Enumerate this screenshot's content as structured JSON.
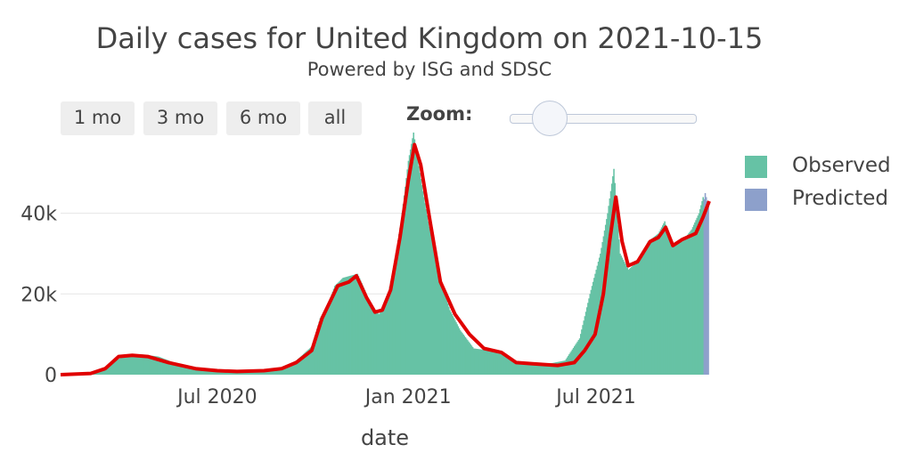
{
  "chart_data": {
    "type": "bar",
    "title": "Daily cases for United Kingdom on 2021-10-15",
    "subtitle": "Powered by ISG and SDSC",
    "xlabel": "date",
    "ylabel": "",
    "x_range": [
      "2020-02-01",
      "2021-10-18"
    ],
    "ylim": [
      0,
      58000
    ],
    "grid": "horizontal",
    "legend_position": "right",
    "y_ticks": [
      0,
      20000,
      40000
    ],
    "y_tick_labels": [
      "0",
      "20k",
      "40k"
    ],
    "x_ticks": [
      "2020-07-01",
      "2021-01-01",
      "2021-07-01"
    ],
    "x_tick_labels": [
      "Jul 2020",
      "Jan 2021",
      "Jul 2021"
    ],
    "series": [
      {
        "name": "Observed",
        "kind": "bar",
        "color": "#66c2a5",
        "points": [
          [
            "2020-02-01",
            0
          ],
          [
            "2020-03-01",
            200
          ],
          [
            "2020-03-15",
            1200
          ],
          [
            "2020-03-25",
            3500
          ],
          [
            "2020-04-05",
            5000
          ],
          [
            "2020-04-20",
            5000
          ],
          [
            "2020-05-05",
            4500
          ],
          [
            "2020-05-20",
            3000
          ],
          [
            "2020-06-10",
            1800
          ],
          [
            "2020-07-01",
            900
          ],
          [
            "2020-07-20",
            700
          ],
          [
            "2020-08-10",
            900
          ],
          [
            "2020-09-01",
            1500
          ],
          [
            "2020-09-15",
            3500
          ],
          [
            "2020-09-30",
            7000
          ],
          [
            "2020-10-08",
            14000
          ],
          [
            "2020-10-15",
            17000
          ],
          [
            "2020-10-22",
            22000
          ],
          [
            "2020-10-30",
            24000
          ],
          [
            "2020-11-06",
            24500
          ],
          [
            "2020-11-13",
            25000
          ],
          [
            "2020-11-20",
            21000
          ],
          [
            "2020-11-27",
            16000
          ],
          [
            "2020-12-04",
            15000
          ],
          [
            "2020-12-11",
            18000
          ],
          [
            "2020-12-18",
            27000
          ],
          [
            "2020-12-25",
            38000
          ],
          [
            "2021-01-01",
            53000
          ],
          [
            "2021-01-06",
            60000
          ],
          [
            "2021-01-12",
            50000
          ],
          [
            "2021-01-20",
            38000
          ],
          [
            "2021-01-30",
            25000
          ],
          [
            "2021-02-10",
            16000
          ],
          [
            "2021-02-20",
            11000
          ],
          [
            "2021-03-05",
            6500
          ],
          [
            "2021-03-20",
            6000
          ],
          [
            "2021-04-01",
            5000
          ],
          [
            "2021-04-15",
            3000
          ],
          [
            "2021-05-10",
            2400
          ],
          [
            "2021-06-01",
            3500
          ],
          [
            "2021-06-15",
            9000
          ],
          [
            "2021-06-25",
            20000
          ],
          [
            "2021-07-05",
            30000
          ],
          [
            "2021-07-12",
            40000
          ],
          [
            "2021-07-18",
            51000
          ],
          [
            "2021-07-24",
            30000
          ],
          [
            "2021-08-01",
            26000
          ],
          [
            "2021-08-10",
            28000
          ],
          [
            "2021-08-20",
            33000
          ],
          [
            "2021-08-30",
            35000
          ],
          [
            "2021-09-05",
            38000
          ],
          [
            "2021-09-12",
            32000
          ],
          [
            "2021-09-22",
            33000
          ],
          [
            "2021-10-01",
            36000
          ],
          [
            "2021-10-08",
            40000
          ],
          [
            "2021-10-12",
            44000
          ]
        ]
      },
      {
        "name": "Predicted",
        "kind": "bar",
        "color": "#8da0cb",
        "points": [
          [
            "2021-10-13",
            43500
          ],
          [
            "2021-10-14",
            45000
          ],
          [
            "2021-10-15",
            44000
          ],
          [
            "2021-10-16",
            43000
          ],
          [
            "2021-10-17",
            42000
          ]
        ]
      },
      {
        "name": "",
        "kind": "line",
        "color": "#e00000",
        "points": [
          [
            "2020-02-01",
            0
          ],
          [
            "2020-03-01",
            300
          ],
          [
            "2020-03-15",
            1500
          ],
          [
            "2020-03-28",
            4500
          ],
          [
            "2020-04-10",
            4800
          ],
          [
            "2020-04-25",
            4500
          ],
          [
            "2020-05-15",
            3000
          ],
          [
            "2020-06-10",
            1500
          ],
          [
            "2020-07-01",
            1000
          ],
          [
            "2020-07-20",
            800
          ],
          [
            "2020-08-15",
            1000
          ],
          [
            "2020-09-01",
            1500
          ],
          [
            "2020-09-15",
            3000
          ],
          [
            "2020-09-30",
            6000
          ],
          [
            "2020-10-10",
            14000
          ],
          [
            "2020-10-25",
            22000
          ],
          [
            "2020-11-05",
            23000
          ],
          [
            "2020-11-12",
            24500
          ],
          [
            "2020-11-22",
            19000
          ],
          [
            "2020-11-30",
            15500
          ],
          [
            "2020-12-07",
            16000
          ],
          [
            "2020-12-15",
            21000
          ],
          [
            "2020-12-24",
            34000
          ],
          [
            "2021-01-01",
            48000
          ],
          [
            "2021-01-07",
            57000
          ],
          [
            "2021-01-13",
            52000
          ],
          [
            "2021-01-22",
            38000
          ],
          [
            "2021-02-01",
            23000
          ],
          [
            "2021-02-15",
            15000
          ],
          [
            "2021-03-01",
            10000
          ],
          [
            "2021-03-15",
            6500
          ],
          [
            "2021-04-01",
            5500
          ],
          [
            "2021-04-15",
            3000
          ],
          [
            "2021-05-01",
            2700
          ],
          [
            "2021-05-25",
            2300
          ],
          [
            "2021-06-10",
            3000
          ],
          [
            "2021-06-20",
            6000
          ],
          [
            "2021-06-30",
            10000
          ],
          [
            "2021-07-08",
            20000
          ],
          [
            "2021-07-14",
            33000
          ],
          [
            "2021-07-20",
            44000
          ],
          [
            "2021-07-26",
            33000
          ],
          [
            "2021-08-01",
            27000
          ],
          [
            "2021-08-10",
            28000
          ],
          [
            "2021-08-22",
            33000
          ],
          [
            "2021-08-30",
            34000
          ],
          [
            "2021-09-06",
            36500
          ],
          [
            "2021-09-13",
            32000
          ],
          [
            "2021-09-22",
            33500
          ],
          [
            "2021-10-05",
            35000
          ],
          [
            "2021-10-12",
            39000
          ],
          [
            "2021-10-18",
            43000
          ]
        ]
      }
    ]
  },
  "controls": {
    "range_buttons": [
      "1 mo",
      "3 mo",
      "6 mo",
      "all"
    ],
    "zoom_label": "Zoom:",
    "zoom_value": 0.15
  },
  "legend": {
    "items": [
      {
        "label": "Observed",
        "color": "#66c2a5"
      },
      {
        "label": "Predicted",
        "color": "#8da0cb"
      }
    ]
  }
}
